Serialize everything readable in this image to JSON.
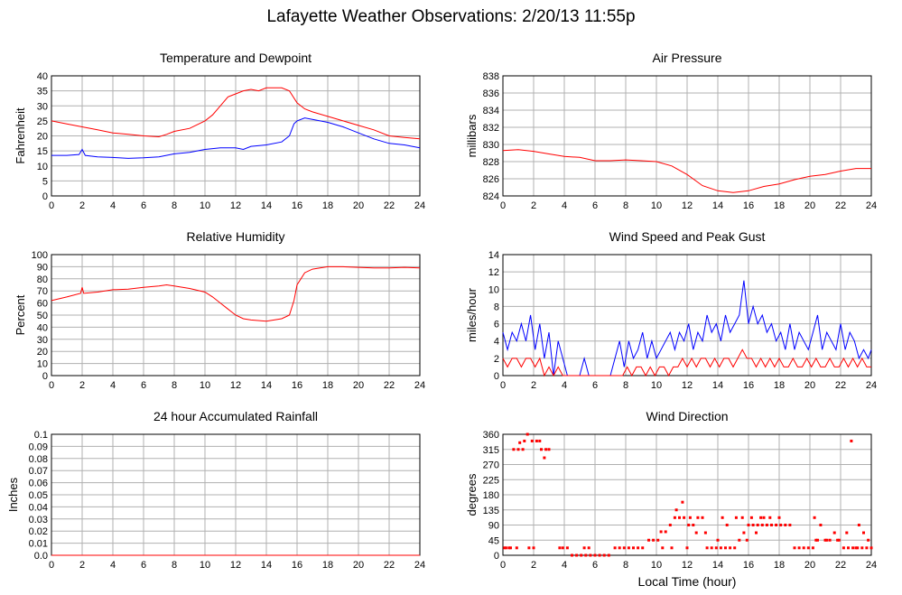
{
  "page": {
    "title": "Lafayette Weather Observations: 2/20/13 11:55p",
    "xlabel": "Local Time (hour)"
  },
  "colors": {
    "red": "#ff0000",
    "blue": "#0000ff",
    "grid": "#b0b0b0"
  },
  "chart_data": [
    {
      "id": "temp",
      "type": "line",
      "title": "Temperature and Dewpoint",
      "ylabel": "Fahrenheit",
      "xlim": [
        0,
        24
      ],
      "ylim": [
        0,
        40
      ],
      "xticks": [
        0,
        2,
        4,
        6,
        8,
        10,
        12,
        14,
        16,
        18,
        20,
        22,
        24
      ],
      "yticks": [
        0,
        5,
        10,
        15,
        20,
        25,
        30,
        35,
        40
      ],
      "series": [
        {
          "color": "red",
          "x": [
            0,
            1,
            2,
            3,
            4,
            5,
            6,
            7,
            7.5,
            8,
            9,
            10,
            10.5,
            11,
            11.5,
            12,
            12.5,
            13,
            13.5,
            14,
            14.5,
            15,
            15.5,
            16,
            16.5,
            17,
            18,
            19,
            20,
            21,
            22,
            23,
            24
          ],
          "y": [
            25,
            24,
            23,
            22,
            21,
            20.5,
            20,
            19.7,
            20.5,
            21.5,
            22.5,
            25,
            27,
            30,
            33,
            34,
            35,
            35.5,
            35,
            36,
            36,
            36,
            35,
            31,
            29,
            28,
            26.5,
            25,
            23.5,
            22,
            20,
            19.5,
            19
          ]
        },
        {
          "color": "blue",
          "x": [
            0,
            1,
            1.8,
            2,
            2.2,
            3,
            4,
            5,
            6,
            7,
            8,
            9,
            10,
            11,
            12,
            12.5,
            13,
            14,
            15,
            15.5,
            15.8,
            16,
            16.5,
            17,
            18,
            19,
            20,
            21,
            22,
            23,
            24
          ],
          "y": [
            13.5,
            13.5,
            13.8,
            15.5,
            13.5,
            13,
            12.8,
            12.5,
            12.7,
            13,
            14,
            14.5,
            15.5,
            16,
            16,
            15.5,
            16.5,
            17,
            18,
            20,
            24,
            25,
            26,
            25.5,
            24.5,
            23,
            21,
            19,
            17.5,
            17,
            16
          ]
        }
      ]
    },
    {
      "id": "pressure",
      "type": "line",
      "title": "Air Pressure",
      "ylabel": "millibars",
      "xlim": [
        0,
        24
      ],
      "ylim": [
        824,
        838
      ],
      "xticks": [
        0,
        2,
        4,
        6,
        8,
        10,
        12,
        14,
        16,
        18,
        20,
        22,
        24
      ],
      "yticks": [
        824,
        826,
        828,
        830,
        832,
        834,
        836,
        838
      ],
      "series": [
        {
          "color": "red",
          "x": [
            0,
            1,
            2,
            3,
            4,
            5,
            6,
            7,
            8,
            9,
            10,
            11,
            12,
            13,
            14,
            15,
            16,
            17,
            18,
            19,
            20,
            21,
            22,
            23,
            24
          ],
          "y": [
            829.3,
            829.4,
            829.2,
            828.9,
            828.6,
            828.5,
            828.1,
            828.1,
            828.2,
            828.1,
            828,
            827.5,
            826.5,
            825.2,
            824.6,
            824.4,
            824.6,
            825.1,
            825.4,
            825.9,
            826.3,
            826.5,
            826.9,
            827.2,
            827.2
          ]
        }
      ]
    },
    {
      "id": "humidity",
      "type": "line",
      "title": "Relative Humidity",
      "ylabel": "Percent",
      "xlim": [
        0,
        24
      ],
      "ylim": [
        0,
        100
      ],
      "xticks": [
        0,
        2,
        4,
        6,
        8,
        10,
        12,
        14,
        16,
        18,
        20,
        22,
        24
      ],
      "yticks": [
        0,
        10,
        20,
        30,
        40,
        50,
        60,
        70,
        80,
        90,
        100
      ],
      "series": [
        {
          "color": "red",
          "x": [
            0,
            1,
            1.9,
            2,
            2.1,
            3,
            4,
            5,
            6,
            7,
            7.5,
            8,
            9,
            10,
            10.5,
            11,
            11.5,
            12,
            12.5,
            13,
            14,
            15,
            15.5,
            15.8,
            16,
            16.5,
            17,
            18,
            19,
            20,
            21,
            22,
            23,
            24
          ],
          "y": [
            62,
            65,
            68,
            73,
            68,
            69,
            71,
            71.5,
            73,
            74,
            75,
            74,
            72,
            69,
            65,
            60,
            55,
            50,
            47,
            46,
            45,
            47,
            50,
            62,
            75,
            85,
            88,
            90,
            90,
            89.5,
            89,
            89,
            89.5,
            89
          ]
        }
      ]
    },
    {
      "id": "wind",
      "type": "line",
      "title": "Wind Speed and Peak Gust",
      "ylabel": "miles/hour",
      "xlim": [
        0,
        24
      ],
      "ylim": [
        0,
        14
      ],
      "xticks": [
        0,
        2,
        4,
        6,
        8,
        10,
        12,
        14,
        16,
        18,
        20,
        22,
        24
      ],
      "yticks": [
        0,
        2,
        4,
        6,
        8,
        10,
        12,
        14
      ],
      "series": [
        {
          "color": "blue",
          "x": [
            0,
            0.3,
            0.6,
            0.9,
            1.2,
            1.5,
            1.8,
            2.1,
            2.4,
            2.7,
            3,
            3.3,
            3.6,
            3.9,
            4.2,
            4.5,
            5,
            5.3,
            5.6,
            6,
            6.5,
            7,
            7.3,
            7.6,
            7.9,
            8.2,
            8.5,
            8.8,
            9.1,
            9.4,
            9.7,
            10,
            10.3,
            10.6,
            10.9,
            11.2,
            11.5,
            11.8,
            12.1,
            12.4,
            12.7,
            13,
            13.3,
            13.6,
            13.9,
            14.2,
            14.5,
            14.8,
            15.1,
            15.4,
            15.7,
            16,
            16.3,
            16.6,
            16.9,
            17.2,
            17.5,
            17.8,
            18.1,
            18.4,
            18.7,
            19,
            19.3,
            19.6,
            19.9,
            20.2,
            20.5,
            20.8,
            21.1,
            21.4,
            21.7,
            22,
            22.3,
            22.6,
            22.9,
            23.2,
            23.5,
            23.8,
            24
          ],
          "y": [
            5,
            3,
            5,
            4,
            6,
            4,
            7,
            3,
            6,
            2,
            5,
            0,
            4,
            2,
            0,
            0,
            0,
            2,
            0,
            0,
            0,
            0,
            2,
            4,
            1,
            4,
            2,
            3,
            5,
            2,
            4,
            2,
            3,
            4,
            5,
            3,
            5,
            4,
            6,
            3,
            5,
            4,
            7,
            5,
            6,
            4,
            7,
            5,
            6,
            7,
            11,
            6,
            8,
            6,
            7,
            5,
            6,
            4,
            5,
            3,
            6,
            3,
            5,
            4,
            3,
            5,
            7,
            3,
            5,
            4,
            3,
            6,
            3,
            5,
            4,
            2,
            3,
            2,
            3
          ]
        },
        {
          "color": "red",
          "x": [
            0,
            0.3,
            0.6,
            0.9,
            1.2,
            1.5,
            1.8,
            2.1,
            2.4,
            2.7,
            3,
            3.3,
            3.6,
            3.9,
            4.2,
            4.5,
            7.8,
            8.1,
            8.4,
            8.7,
            9,
            9.3,
            9.6,
            9.9,
            10.2,
            10.5,
            10.8,
            11.1,
            11.4,
            11.7,
            12,
            12.3,
            12.6,
            12.9,
            13.2,
            13.5,
            13.8,
            14.1,
            14.4,
            14.7,
            15,
            15.3,
            15.6,
            15.9,
            16.2,
            16.5,
            16.8,
            17.1,
            17.4,
            17.7,
            18,
            18.3,
            18.6,
            18.9,
            19.2,
            19.5,
            19.8,
            20.1,
            20.4,
            20.7,
            21,
            21.3,
            21.6,
            21.9,
            22.2,
            22.5,
            22.8,
            23.1,
            23.4,
            23.7,
            24
          ],
          "y": [
            2,
            1,
            2,
            2,
            1,
            2,
            2,
            1,
            2,
            0,
            1,
            0,
            1,
            0,
            0,
            0,
            0,
            1,
            0,
            1,
            1,
            0,
            1,
            0,
            1,
            1,
            0,
            1,
            1,
            2,
            1,
            2,
            1,
            2,
            2,
            1,
            2,
            1,
            2,
            2,
            1,
            2,
            3,
            2,
            2,
            1,
            2,
            1,
            2,
            1,
            2,
            1,
            1,
            2,
            1,
            1,
            2,
            1,
            2,
            1,
            1,
            2,
            1,
            1,
            2,
            1,
            2,
            1,
            2,
            1,
            1
          ]
        }
      ]
    },
    {
      "id": "rain",
      "type": "line",
      "title": "24 hour Accumulated Rainfall",
      "ylabel": "Inches",
      "xlim": [
        0,
        24
      ],
      "ylim": [
        0,
        0.1
      ],
      "xticks": [
        0,
        2,
        4,
        6,
        8,
        10,
        12,
        14,
        16,
        18,
        20,
        22,
        24
      ],
      "yticks": [
        0,
        0.01,
        0.02,
        0.03,
        0.04,
        0.05,
        0.06,
        0.07,
        0.08,
        0.09,
        0.1
      ],
      "yticklabels": [
        "0.0",
        "0.01",
        "0.02",
        "0.03",
        "0.04",
        "0.05",
        "0.06",
        "0.07",
        "0.08",
        "0.09",
        "0.1"
      ],
      "series": [
        {
          "color": "red",
          "x": [
            0,
            24
          ],
          "y": [
            0,
            0
          ]
        }
      ]
    },
    {
      "id": "direction",
      "type": "scatter",
      "title": "Wind Direction",
      "ylabel": "degrees",
      "xlim": [
        0,
        24
      ],
      "ylim": [
        0,
        360
      ],
      "xticks": [
        0,
        2,
        4,
        6,
        8,
        10,
        12,
        14,
        16,
        18,
        20,
        22,
        24
      ],
      "yticks": [
        0,
        45,
        90,
        135,
        180,
        225,
        270,
        315,
        360
      ],
      "series": [
        {
          "color": "red",
          "x": [
            0.1,
            0.4,
            0.7,
            1.0,
            1.3,
            1.1,
            1.4,
            1.6,
            0.9,
            1.9,
            2.2,
            2.5,
            2.8,
            3.0,
            2.4,
            2.7,
            0.2,
            0.5,
            1.7,
            2.0,
            3.7,
            3.9,
            4.2,
            4.5,
            4.8,
            5.1,
            5.4,
            5.7,
            6.0,
            6.3,
            6.6,
            6.9,
            5.3,
            5.6,
            7.3,
            7.6,
            7.9,
            8.2,
            8.5,
            8.8,
            9.1,
            9.5,
            9.8,
            10.1,
            10.3,
            10.6,
            10.9,
            11.2,
            11.5,
            11.8,
            11.3,
            11.7,
            12.1,
            12.4,
            12.7,
            13.0,
            12.2,
            12.6,
            13.3,
            13.6,
            13.9,
            14.2,
            14.5,
            14.8,
            14.3,
            14.6,
            15.1,
            15.4,
            15.7,
            16.0,
            16.3,
            16.6,
            16.9,
            17.2,
            17.5,
            17.8,
            18.1,
            18.4,
            18.7,
            15.2,
            15.6,
            16.2,
            16.8,
            17.4,
            18.0,
            19.0,
            19.3,
            19.6,
            19.9,
            20.2,
            20.5,
            20.3,
            20.7,
            21.0,
            21.3,
            21.6,
            21.9,
            22.2,
            22.5,
            22.8,
            23.1,
            23.4,
            23.7,
            24.0,
            23.5,
            23.2,
            22.7,
            10.4,
            11.0,
            12.0,
            14.0,
            15.9,
            13.2,
            16.5,
            17.0,
            20.4,
            21.1,
            21.8,
            22.4,
            23.0,
            23.8
          ],
          "y": [
            22,
            22,
            315,
            315,
            315,
            335,
            340,
            360,
            22,
            340,
            340,
            315,
            315,
            315,
            340,
            290,
            22,
            22,
            22,
            22,
            22,
            22,
            22,
            0,
            0,
            0,
            0,
            0,
            0,
            0,
            0,
            0,
            22,
            22,
            22,
            22,
            22,
            22,
            22,
            22,
            22,
            45,
            45,
            45,
            70,
            70,
            90,
            112,
            112,
            112,
            135,
            158,
            90,
            90,
            112,
            112,
            112,
            67,
            22,
            22,
            22,
            22,
            22,
            22,
            112,
            90,
            22,
            45,
            67,
            90,
            90,
            90,
            90,
            90,
            90,
            90,
            90,
            90,
            90,
            112,
            112,
            112,
            112,
            112,
            112,
            22,
            22,
            22,
            22,
            22,
            45,
            112,
            90,
            45,
            45,
            67,
            45,
            22,
            22,
            22,
            22,
            22,
            22,
            22,
            67,
            90,
            340,
            22,
            22,
            22,
            45,
            45,
            67,
            67,
            112,
            45,
            45,
            45,
            67,
            22,
            45
          ]
        }
      ]
    }
  ]
}
